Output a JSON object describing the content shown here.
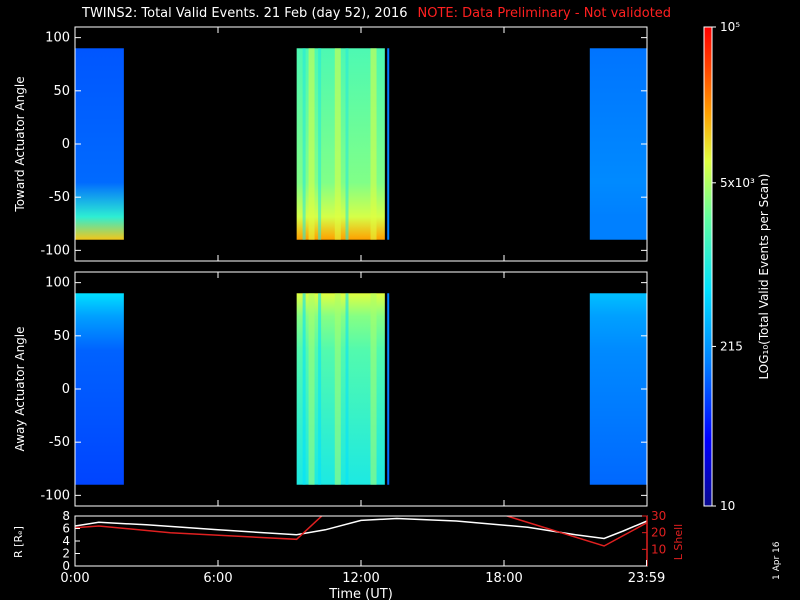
{
  "header": {
    "title": "TWINS2: Total Valid Events. 21 Feb (day  52), 2016",
    "note": "NOTE: Data Preliminary - Not validoted"
  },
  "footer": {
    "run_date": "1 Apr 16"
  },
  "colors": {
    "note": "#ff2020",
    "r_line": "#ffffff",
    "l_shell_line": "#e02020",
    "background": "#000000"
  },
  "chart_data": [
    {
      "id": "toward",
      "type": "heatmap",
      "ylabel": "Toward Actuator Angle",
      "ylim": [
        -110,
        110
      ],
      "yticks": [
        100,
        50,
        0,
        -50,
        -100
      ],
      "data_range_y": [
        -90,
        90
      ],
      "x_unit": "hours UT",
      "xlim": [
        0,
        24
      ],
      "blocks": [
        {
          "x_start": 0.0,
          "x_end": 2.05,
          "level": 0.26,
          "edge_level": 0.78,
          "edge_side": "bottom"
        },
        {
          "x_start": 9.3,
          "x_end": 13.0,
          "level": 0.6,
          "edge_level": 0.82,
          "edge_side": "bottom"
        },
        {
          "x_start": 13.1,
          "x_end": 13.18,
          "level": 0.3,
          "edge_level": 0.3,
          "edge_side": "bottom",
          "narrow": true
        },
        {
          "x_start": 21.6,
          "x_end": 24.0,
          "level": 0.3,
          "edge_level": 0.3,
          "edge_side": "bottom"
        }
      ]
    },
    {
      "id": "away",
      "type": "heatmap",
      "ylabel": "Away Actuator Angle",
      "ylim": [
        -110,
        110
      ],
      "yticks": [
        100,
        50,
        0,
        -50,
        -100
      ],
      "data_range_y": [
        -90,
        90
      ],
      "x_unit": "hours UT",
      "xlim": [
        0,
        24
      ],
      "blocks": [
        {
          "x_start": 0.0,
          "x_end": 2.05,
          "level": 0.25,
          "edge_level": 0.45,
          "edge_side": "top"
        },
        {
          "x_start": 9.3,
          "x_end": 13.0,
          "level": 0.55,
          "edge_level": 0.72,
          "edge_side": "top"
        },
        {
          "x_start": 13.1,
          "x_end": 13.18,
          "level": 0.3,
          "edge_level": 0.3,
          "edge_side": "top",
          "narrow": true
        },
        {
          "x_start": 21.6,
          "x_end": 24.0,
          "level": 0.3,
          "edge_level": 0.4,
          "edge_side": "top"
        }
      ]
    },
    {
      "id": "orbit",
      "type": "line",
      "xlabel": "Time (UT)",
      "xticks": [
        0,
        6,
        12,
        18,
        23.98
      ],
      "xtick_labels": [
        "0:00",
        "6:00",
        "12:00",
        "18:00",
        "23:59"
      ],
      "xlim": [
        0,
        24
      ],
      "left_axis": {
        "label": "R [Rₑ]",
        "ylim": [
          0,
          8
        ],
        "ticks": [
          0,
          2,
          4,
          6,
          8
        ]
      },
      "right_axis": {
        "label": "L Shell",
        "ylim": [
          0,
          30
        ],
        "ticks": [
          10,
          20,
          30
        ]
      },
      "series": [
        {
          "name": "R [Rₑ]",
          "axis": "left",
          "x": [
            0,
            1,
            3,
            6,
            9.3,
            10.5,
            12,
            13.5,
            16,
            19,
            21,
            22.2,
            23,
            24
          ],
          "y": [
            6.4,
            7.0,
            6.6,
            5.8,
            5.0,
            5.8,
            7.3,
            7.6,
            7.2,
            6.2,
            5.0,
            4.4,
            5.6,
            7.2
          ]
        },
        {
          "name": "L Shell",
          "axis": "right",
          "x": [
            0,
            1,
            4,
            9.3,
            10.5,
            null,
            17.9,
            22.2,
            24
          ],
          "y": [
            23,
            24,
            20,
            16,
            32,
            null,
            31,
            12,
            26
          ]
        }
      ]
    },
    {
      "id": "colorbar",
      "type": "heatmap",
      "label": "LOG₁₀(Total Valid Events per Scan)",
      "ticks": [
        {
          "value": 10,
          "label": "10"
        },
        {
          "value": 215,
          "label": "215"
        },
        {
          "value": 5000,
          "label": "5x10³"
        },
        {
          "value": 100000,
          "label": "10⁵"
        }
      ],
      "scale": "log"
    }
  ]
}
